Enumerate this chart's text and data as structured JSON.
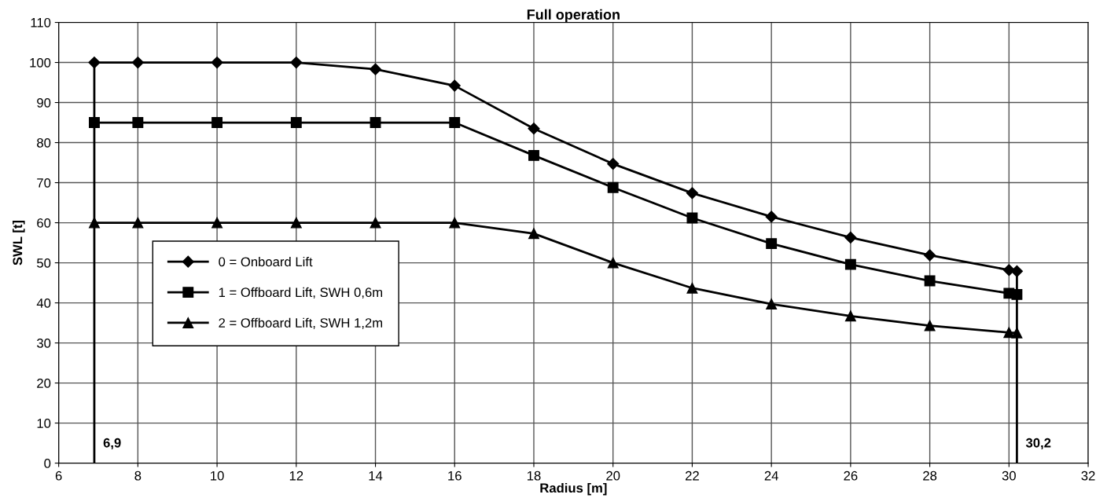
{
  "chart_data": {
    "type": "line",
    "title": "Full operation",
    "xlabel": "Radius [m]",
    "ylabel": "SWL [t]",
    "xlim": [
      6,
      32
    ],
    "xticks": [
      6,
      8,
      10,
      12,
      14,
      16,
      18,
      20,
      22,
      24,
      26,
      28,
      30,
      32
    ],
    "ylim": [
      0,
      110
    ],
    "yticks": [
      0,
      10,
      20,
      30,
      40,
      50,
      60,
      70,
      80,
      90,
      100,
      110
    ],
    "x": [
      6.9,
      8,
      10,
      12,
      14,
      16,
      18,
      20,
      22,
      24,
      26,
      28,
      30,
      30.2
    ],
    "series": [
      {
        "name": "0 = Onboard Lift",
        "color": "#000000",
        "marker": "diamond",
        "values": [
          100,
          100,
          100,
          100,
          98.3,
          94.2,
          83.5,
          74.7,
          67.4,
          61.5,
          56.3,
          51.9,
          48.2,
          47.9
        ]
      },
      {
        "name": "1 = Offboard Lift, SWH 0,6m",
        "color": "#000000",
        "marker": "square",
        "values": [
          85,
          85,
          85,
          85,
          85,
          85,
          76.8,
          68.8,
          61.2,
          54.8,
          49.6,
          45.5,
          42.4,
          42.1
        ]
      },
      {
        "name": "2 = Offboard Lift, SWH 1,2m",
        "color": "#000000",
        "marker": "triangle",
        "values": [
          60,
          60,
          60,
          60,
          60,
          60,
          57.3,
          50,
          43.7,
          39.7,
          36.7,
          34.3,
          32.6,
          32.5
        ]
      }
    ],
    "ref_lines": [
      {
        "axis": "x",
        "value": 6.9,
        "label": "6,9",
        "color": "#000000"
      },
      {
        "axis": "x",
        "value": 30.2,
        "label": "30,2",
        "color": "#000000"
      }
    ],
    "grid": true,
    "legend": "center left",
    "line_style": "solid"
  }
}
